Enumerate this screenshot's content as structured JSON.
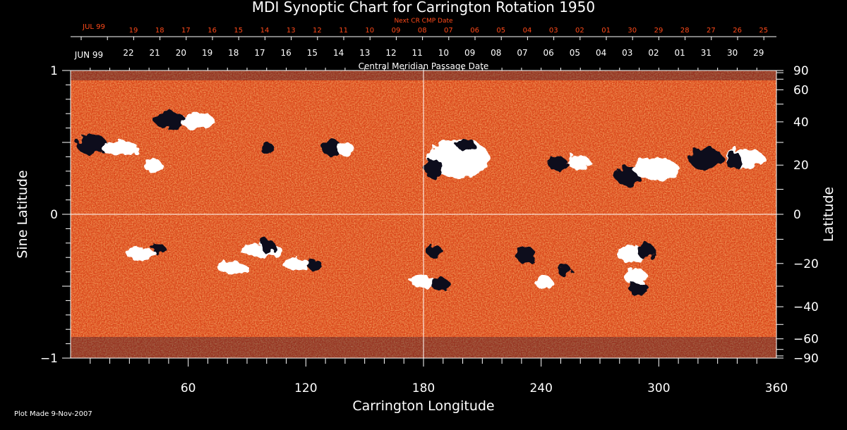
{
  "chart_data": {
    "type": "heatmap",
    "title": "MDI Synoptic Chart for Carrington Rotation 1950",
    "xlabel": "Carrington Longitude",
    "ylabel_left": "Sine Latitude",
    "ylabel_right": "Latitude",
    "xlim": [
      0,
      360
    ],
    "ylim_sine": [
      -1,
      1
    ],
    "x_ticks": [
      60,
      120,
      180,
      240,
      300,
      360
    ],
    "y_left_ticks": [
      {
        "value": 1,
        "label": "1"
      },
      {
        "value": 0,
        "label": "0"
      },
      {
        "value": -1,
        "label": "−1"
      }
    ],
    "y_right_ticks": [
      90,
      60,
      40,
      20,
      0,
      -20,
      -40,
      -60,
      -90
    ],
    "top_axis_next_cr": {
      "label": "Next CR CMP Date",
      "month_label": "JUL 99",
      "days": [
        "19",
        "18",
        "17",
        "16",
        "15",
        "14",
        "13",
        "12",
        "11",
        "10",
        "09",
        "08",
        "07",
        "06",
        "05",
        "04",
        "03",
        "02",
        "01",
        "30",
        "29",
        "28",
        "27",
        "26",
        "25"
      ]
    },
    "top_axis_cmp": {
      "label": "Central Meridian Passage Date",
      "month_label": "JUN 99",
      "days": [
        "22",
        "21",
        "20",
        "19",
        "18",
        "17",
        "16",
        "15",
        "14",
        "13",
        "12",
        "11",
        "10",
        "09",
        "08",
        "07",
        "06",
        "05",
        "04",
        "03",
        "02",
        "01",
        "31",
        "30",
        "29"
      ]
    },
    "colors": {
      "background_field": "#e2501a",
      "positive_polarity": "#ffffff",
      "negative_polarity": "#0a0a1e",
      "axis": "#ffffff",
      "top_axis_red": "#ff4a1a"
    },
    "grid_lines": {
      "longitude": 180,
      "latitude": 0
    }
  },
  "footer": {
    "plot_made": "Plot Made  9-Nov-2007"
  }
}
